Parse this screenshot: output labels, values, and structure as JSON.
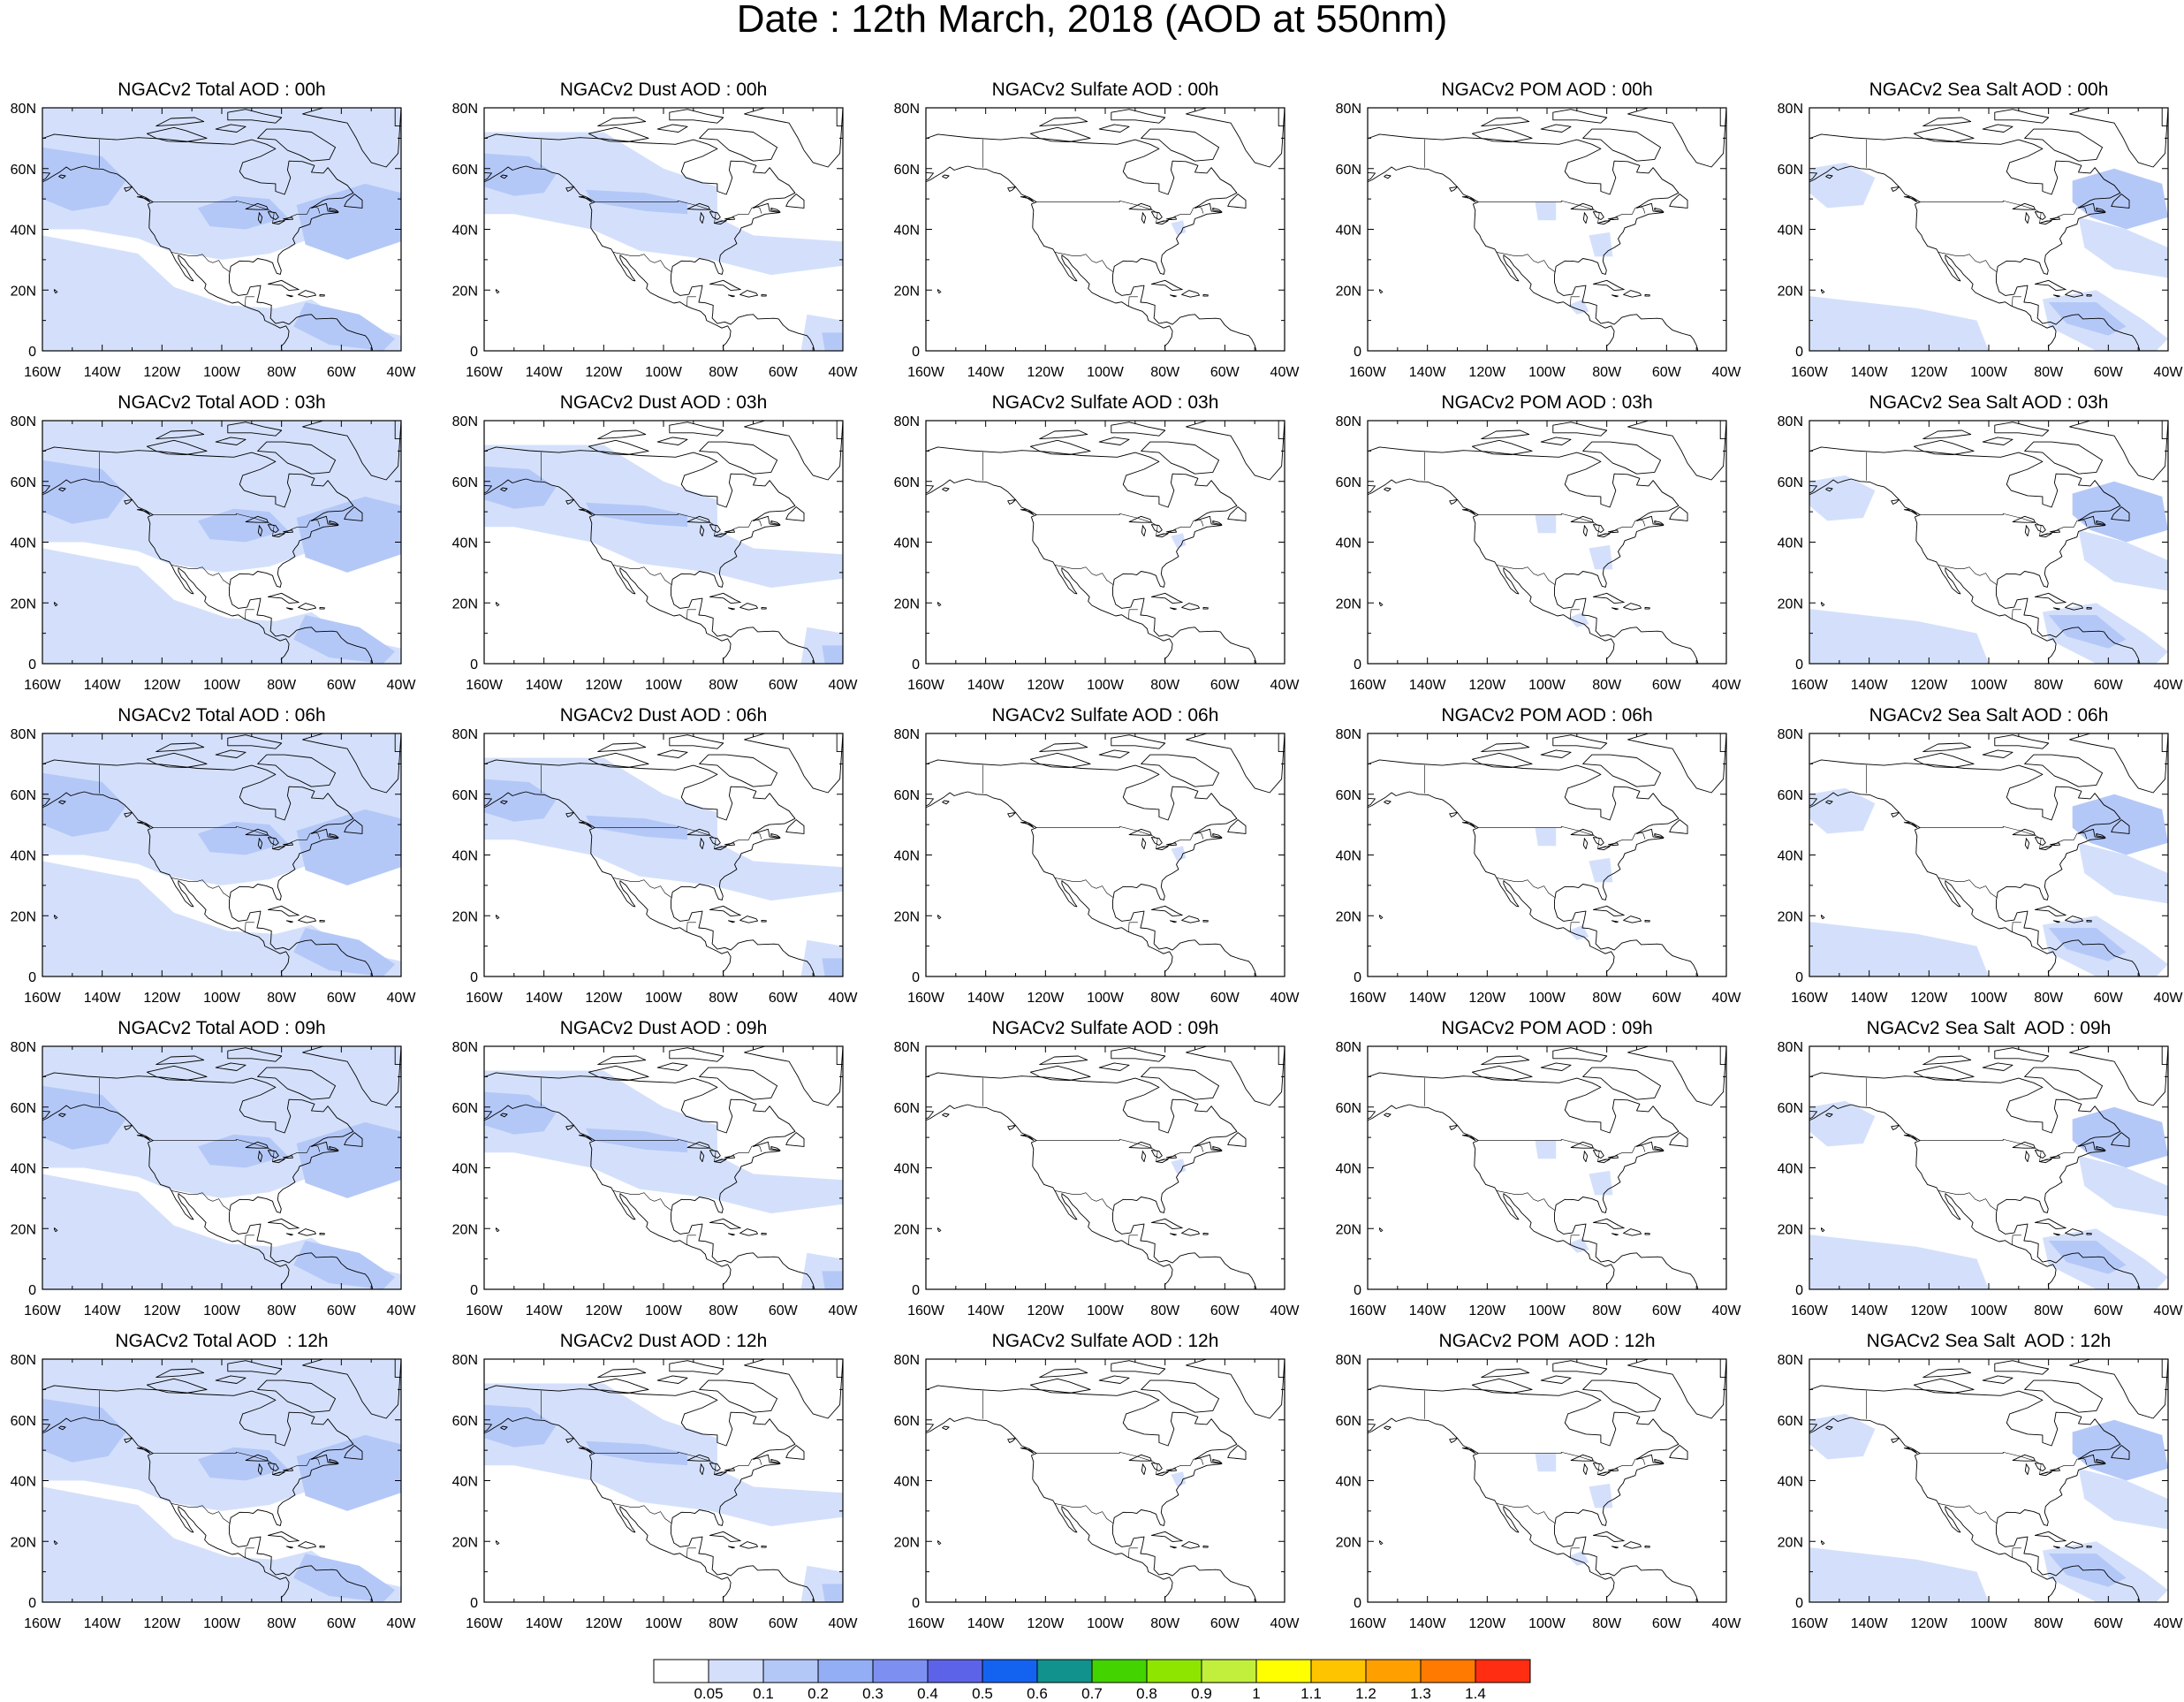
{
  "title": "Date : 12th March, 2018 (AOD at 550nm)",
  "panels": [
    {
      "title": "NGACv2 Total AOD : 00h",
      "species": "total",
      "hour": "00h"
    },
    {
      "title": "NGACv2 Dust AOD : 00h",
      "species": "dust",
      "hour": "00h"
    },
    {
      "title": "NGACv2 Sulfate AOD : 00h",
      "species": "sulfate",
      "hour": "00h"
    },
    {
      "title": "NGACv2 POM AOD : 00h",
      "species": "pom",
      "hour": "00h"
    },
    {
      "title": "NGACv2 Sea Salt AOD : 00h",
      "species": "seasalt",
      "hour": "00h"
    },
    {
      "title": "NGACv2 Total AOD : 03h",
      "species": "total",
      "hour": "03h"
    },
    {
      "title": "NGACv2 Dust AOD : 03h",
      "species": "dust",
      "hour": "03h"
    },
    {
      "title": "NGACv2 Sulfate AOD : 03h",
      "species": "sulfate",
      "hour": "03h"
    },
    {
      "title": "NGACv2 POM AOD : 03h",
      "species": "pom",
      "hour": "03h"
    },
    {
      "title": "NGACv2 Sea Salt AOD : 03h",
      "species": "seasalt",
      "hour": "03h"
    },
    {
      "title": "NGACv2 Total AOD : 06h",
      "species": "total",
      "hour": "06h"
    },
    {
      "title": "NGACv2 Dust AOD : 06h",
      "species": "dust",
      "hour": "06h"
    },
    {
      "title": "NGACv2 Sulfate AOD : 06h",
      "species": "sulfate",
      "hour": "06h"
    },
    {
      "title": "NGACv2 POM AOD : 06h",
      "species": "pom",
      "hour": "06h"
    },
    {
      "title": "NGACv2 Sea Salt AOD : 06h",
      "species": "seasalt",
      "hour": "06h"
    },
    {
      "title": "NGACv2 Total AOD : 09h",
      "species": "total",
      "hour": "09h"
    },
    {
      "title": "NGACv2 Dust AOD : 09h",
      "species": "dust",
      "hour": "09h"
    },
    {
      "title": "NGACv2 Sulfate AOD : 09h",
      "species": "sulfate",
      "hour": "09h"
    },
    {
      "title": "NGACv2 POM AOD : 09h",
      "species": "pom",
      "hour": "09h"
    },
    {
      "title": "NGACv2 Sea Salt  AOD : 09h",
      "species": "seasalt",
      "hour": "09h"
    },
    {
      "title": "NGACv2 Total AOD  : 12h",
      "species": "total",
      "hour": "12h"
    },
    {
      "title": "NGACv2 Dust AOD : 12h",
      "species": "dust",
      "hour": "12h"
    },
    {
      "title": "NGACv2 Sulfate AOD : 12h",
      "species": "sulfate",
      "hour": "12h"
    },
    {
      "title": "NGACv2 POM  AOD : 12h",
      "species": "pom",
      "hour": "12h"
    },
    {
      "title": "NGACv2 Sea Salt  AOD : 12h",
      "species": "seasalt",
      "hour": "12h"
    }
  ],
  "map": {
    "lon_range": [
      -160,
      -40
    ],
    "lat_range": [
      0,
      80
    ],
    "lon_ticks": [
      "160W",
      "140W",
      "120W",
      "100W",
      "80W",
      "60W",
      "40W"
    ],
    "lat_ticks": [
      "0",
      "20N",
      "40N",
      "60N",
      "80N"
    ]
  },
  "colorbar": {
    "labels": [
      "0.05",
      "0.1",
      "0.2",
      "0.3",
      "0.4",
      "0.5",
      "0.6",
      "0.7",
      "0.8",
      "0.9",
      "1",
      "1.1",
      "1.2",
      "1.3",
      "1.4"
    ],
    "colors": [
      "#ffffff",
      "#d4e0fb",
      "#b4c8f8",
      "#94aef6",
      "#7d90f2",
      "#5d63e8",
      "#1463f0",
      "#12928c",
      "#43d400",
      "#8ee600",
      "#c2ef3c",
      "#ffff00",
      "#ffc400",
      "#ff9f00",
      "#ff7a00",
      "#ff2e12"
    ]
  }
}
